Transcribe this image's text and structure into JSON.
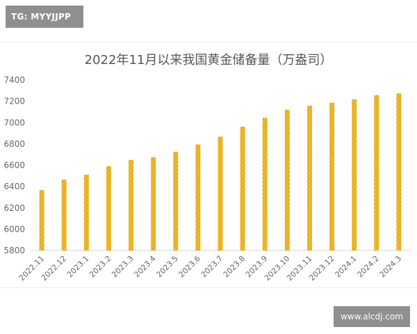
{
  "watermarks": {
    "top_left": "TG: MYYJJPP",
    "bottom_right": "www.alcdj.com"
  },
  "colors": {
    "bar": "#f2bd2d",
    "bar_stripe": "#e2a619",
    "axis": "#d0d0d0"
  },
  "chart_data": {
    "type": "bar",
    "title": "2022年11月以来我国黄金储备量（万盎司）",
    "xlabel": "",
    "ylabel": "",
    "ylim": [
      5800,
      7400
    ],
    "yticks": [
      5800,
      6000,
      6200,
      6400,
      6600,
      6800,
      7000,
      7200,
      7400
    ],
    "grid": false,
    "categories": [
      "2022.11",
      "2022.12",
      "2023.1",
      "2023.2",
      "2023.3",
      "2023.4",
      "2023.5",
      "2023.6",
      "2023.7",
      "2023.8",
      "2023.9",
      "2023.10",
      "2023.11",
      "2023.12",
      "2024.1",
      "2024.2",
      "2024.3"
    ],
    "values": [
      6367,
      6464,
      6512,
      6592,
      6650,
      6676,
      6727,
      6795,
      6869,
      6962,
      7046,
      7120,
      7158,
      7187,
      7219,
      7258,
      7274
    ]
  }
}
